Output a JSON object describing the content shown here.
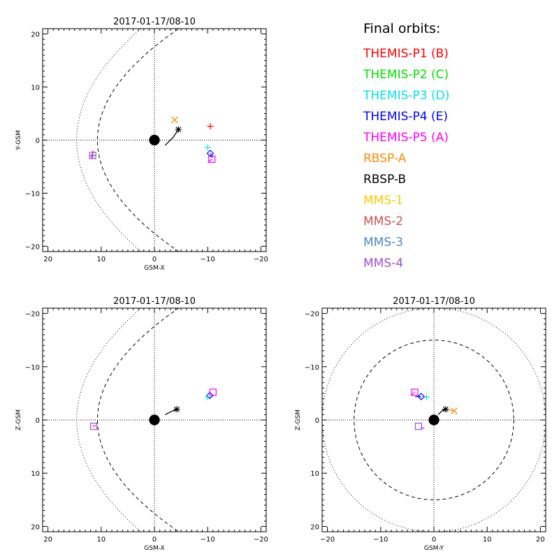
{
  "legend": {
    "title": "Final orbits:",
    "entries": [
      {
        "label": "THEMIS-P1 (B)",
        "color": "#ff0000"
      },
      {
        "label": "THEMIS-P2 (C)",
        "color": "#00e000"
      },
      {
        "label": "THEMIS-P3 (D)",
        "color": "#00e5e5"
      },
      {
        "label": "THEMIS-P4 (E)",
        "color": "#0000ff"
      },
      {
        "label": "THEMIS-P5 (A)",
        "color": "#ff00ff"
      },
      {
        "label": "RBSP-A",
        "color": "#ff8c00"
      },
      {
        "label": "RBSP-B",
        "color": "#000000"
      },
      {
        "label": "MMS-1",
        "color": "#ffc800"
      },
      {
        "label": "MMS-2",
        "color": "#d05050"
      },
      {
        "label": "MMS-3",
        "color": "#4a86c5"
      },
      {
        "label": "MMS-4",
        "color": "#9b4fd6"
      }
    ]
  },
  "chart_data": [
    {
      "type": "scatter",
      "id": "xy",
      "title": "2017-01-17/08-10",
      "xlabel": "GSM-X",
      "ylabel": "Y-GSM",
      "xlim": [
        21,
        -21
      ],
      "ylim": [
        21,
        -21
      ],
      "xticks": [
        20,
        10,
        0,
        -10,
        -20
      ],
      "yticks": [
        -20,
        -10,
        0,
        10,
        20
      ],
      "xtick_labels": [
        "20",
        "10",
        "0",
        "−10",
        "−20"
      ],
      "ytick_labels": [
        "−20",
        "−10",
        "0",
        "10",
        "20"
      ],
      "boundaries": [
        {
          "name": "bow-shock",
          "style": "dotted",
          "kind": "parabola",
          "apex": 14.6,
          "scale": 0.0137
        },
        {
          "name": "magnetopause",
          "style": "dashed",
          "kind": "parabola",
          "apex": 10.7,
          "scale": 0.0173
        }
      ],
      "earth": {
        "x": 0,
        "y": 0,
        "radius_re": 1.0
      },
      "tracks": [
        {
          "name": "RBSP-B",
          "color": "#000000",
          "points": [
            [
              -2.0,
              -1.0
            ],
            [
              -3.5,
              0.5
            ],
            [
              -4.5,
              2.0
            ]
          ],
          "marker": "asterisk"
        },
        {
          "name": "RBSP-A",
          "color": "#ff8c00",
          "points": [
            [
              -3.8,
              3.8
            ]
          ],
          "marker": "x"
        },
        {
          "name": "THEMIS-P1 (B)",
          "color": "#ff0000",
          "points": [
            [
              -10.5,
              2.6
            ]
          ],
          "marker": "plus"
        },
        {
          "name": "THEMIS-P5 (A)",
          "color": "#ff00ff",
          "points": [
            [
              -10.0,
              -4.2
            ],
            [
              -10.8,
              -3.6
            ]
          ],
          "marker": "square"
        },
        {
          "name": "THEMIS-P4 (E)",
          "color": "#0000ff",
          "points": [
            [
              -10.9,
              -3.3
            ],
            [
              -10.5,
              -2.5
            ]
          ],
          "marker": "diamond"
        },
        {
          "name": "THEMIS-P3 (D)",
          "color": "#00e5e5",
          "points": [
            [
              -10.0,
              -1.4
            ]
          ],
          "marker": "plus"
        },
        {
          "name": "MMS-4",
          "color": "#9b4fd6",
          "points": [
            [
              11.6,
              -2.9
            ]
          ],
          "marker": "square"
        },
        {
          "name": "MMS-1",
          "color": "#ffc800",
          "points": [
            [
              11.6,
              -2.9
            ]
          ],
          "marker": "plus"
        },
        {
          "name": "MMS-2",
          "color": "#d05050",
          "points": [
            [
              11.6,
              -2.9
            ]
          ],
          "marker": "plus"
        },
        {
          "name": "MMS-3",
          "color": "#4a86c5",
          "points": [
            [
              11.6,
              -2.9
            ]
          ],
          "marker": "plus"
        },
        {
          "name": "THEMIS-P5 (A)",
          "color": "#ff00ff",
          "points": [
            [
              11.9,
              -3.4
            ],
            [
              11.5,
              -2.0
            ]
          ],
          "marker": "none"
        }
      ]
    },
    {
      "type": "scatter",
      "id": "xz",
      "title": "2017-01-17/08-10",
      "xlabel": "GSM-X",
      "ylabel": "Z-GSM",
      "xlim": [
        21,
        -21
      ],
      "ylim": [
        -21,
        21
      ],
      "xticks": [
        20,
        10,
        0,
        -10,
        -20
      ],
      "yticks": [
        -20,
        -10,
        0,
        10,
        20
      ],
      "xtick_labels": [
        "20",
        "10",
        "0",
        "−10",
        "−20"
      ],
      "ytick_labels": [
        "−20",
        "−10",
        "0",
        "10",
        "20"
      ],
      "boundaries": [
        {
          "name": "bow-shock",
          "style": "dotted",
          "kind": "parabola",
          "apex": 14.6,
          "scale": 0.0137
        },
        {
          "name": "magnetopause",
          "style": "dashed",
          "kind": "parabola",
          "apex": 10.7,
          "scale": 0.0173
        }
      ],
      "earth": {
        "x": 0,
        "y": 0,
        "radius_re": 1.0
      },
      "tracks": [
        {
          "name": "RBSP-B",
          "color": "#000000",
          "points": [
            [
              -2.0,
              -1.0
            ],
            [
              -3.2,
              -1.6
            ],
            [
              -4.2,
              -2.0
            ]
          ],
          "marker": "asterisk"
        },
        {
          "name": "THEMIS-P4 (E)",
          "color": "#0000ff",
          "points": [
            [
              -10.4,
              -4.6
            ]
          ],
          "marker": "diamond"
        },
        {
          "name": "THEMIS-P3 (D)",
          "color": "#00e5e5",
          "points": [
            [
              -10.0,
              -4.3
            ]
          ],
          "marker": "plus"
        },
        {
          "name": "THEMIS-P5 (A)",
          "color": "#ff00ff",
          "points": [
            [
              -11.0,
              -5.2
            ]
          ],
          "marker": "square"
        },
        {
          "name": "MMS-4",
          "color": "#9b4fd6",
          "points": [
            [
              11.4,
              1.2
            ]
          ],
          "marker": "square"
        },
        {
          "name": "THEMIS-P5 (A)",
          "color": "#ff00ff",
          "points": [
            [
              11.0,
              1.0
            ],
            [
              11.6,
              1.3
            ]
          ],
          "marker": "none"
        }
      ]
    },
    {
      "type": "scatter",
      "id": "yz",
      "title": "2017-01-17/08-10",
      "xlabel": "GSM-Y",
      "ylabel": "Z-GSM",
      "xlim": [
        -21,
        21
      ],
      "ylim": [
        -21,
        21
      ],
      "xticks": [
        -20,
        -10,
        0,
        10,
        20
      ],
      "yticks": [
        -20,
        -10,
        0,
        10,
        20
      ],
      "xtick_labels": [
        "−20",
        "−10",
        "0",
        "10",
        "20"
      ],
      "ytick_labels": [
        "−20",
        "−10",
        "0",
        "10",
        "20"
      ],
      "boundaries": [
        {
          "name": "bow-shock",
          "style": "dotted",
          "kind": "circle",
          "radius": 21.0
        },
        {
          "name": "magnetopause",
          "style": "dashed",
          "kind": "circle",
          "radius": 15.0
        }
      ],
      "earth": {
        "x": 0,
        "y": 0,
        "radius_re": 1.0
      },
      "tracks": [
        {
          "name": "RBSP-B",
          "color": "#000000",
          "points": [
            [
              0.8,
              -1.0
            ],
            [
              1.6,
              -1.8
            ],
            [
              2.2,
              -2.0
            ]
          ],
          "marker": "asterisk"
        },
        {
          "name": "RBSP-A",
          "color": "#ff8c00",
          "points": [
            [
              2.8,
              -1.9
            ],
            [
              3.8,
              -1.7
            ]
          ],
          "marker": "x"
        },
        {
          "name": "THEMIS-P3 (D)",
          "color": "#00e5e5",
          "points": [
            [
              -1.4,
              -4.3
            ]
          ],
          "marker": "plus"
        },
        {
          "name": "THEMIS-P4 (E)",
          "color": "#0000ff",
          "points": [
            [
              -3.5,
              -4.4
            ],
            [
              -2.4,
              -4.4
            ]
          ],
          "marker": "diamond"
        },
        {
          "name": "THEMIS-P5 (A)",
          "color": "#ff00ff",
          "points": [
            [
              -4.3,
              -4.6
            ],
            [
              -3.6,
              -5.2
            ]
          ],
          "marker": "square"
        },
        {
          "name": "MMS-4",
          "color": "#9b4fd6",
          "points": [
            [
              -2.9,
              1.2
            ]
          ],
          "marker": "square"
        },
        {
          "name": "THEMIS-P5 (A)",
          "color": "#ff00ff",
          "points": [
            [
              -2.5,
              1.4
            ],
            [
              -1.8,
              1.6
            ]
          ],
          "marker": "none"
        }
      ]
    }
  ]
}
